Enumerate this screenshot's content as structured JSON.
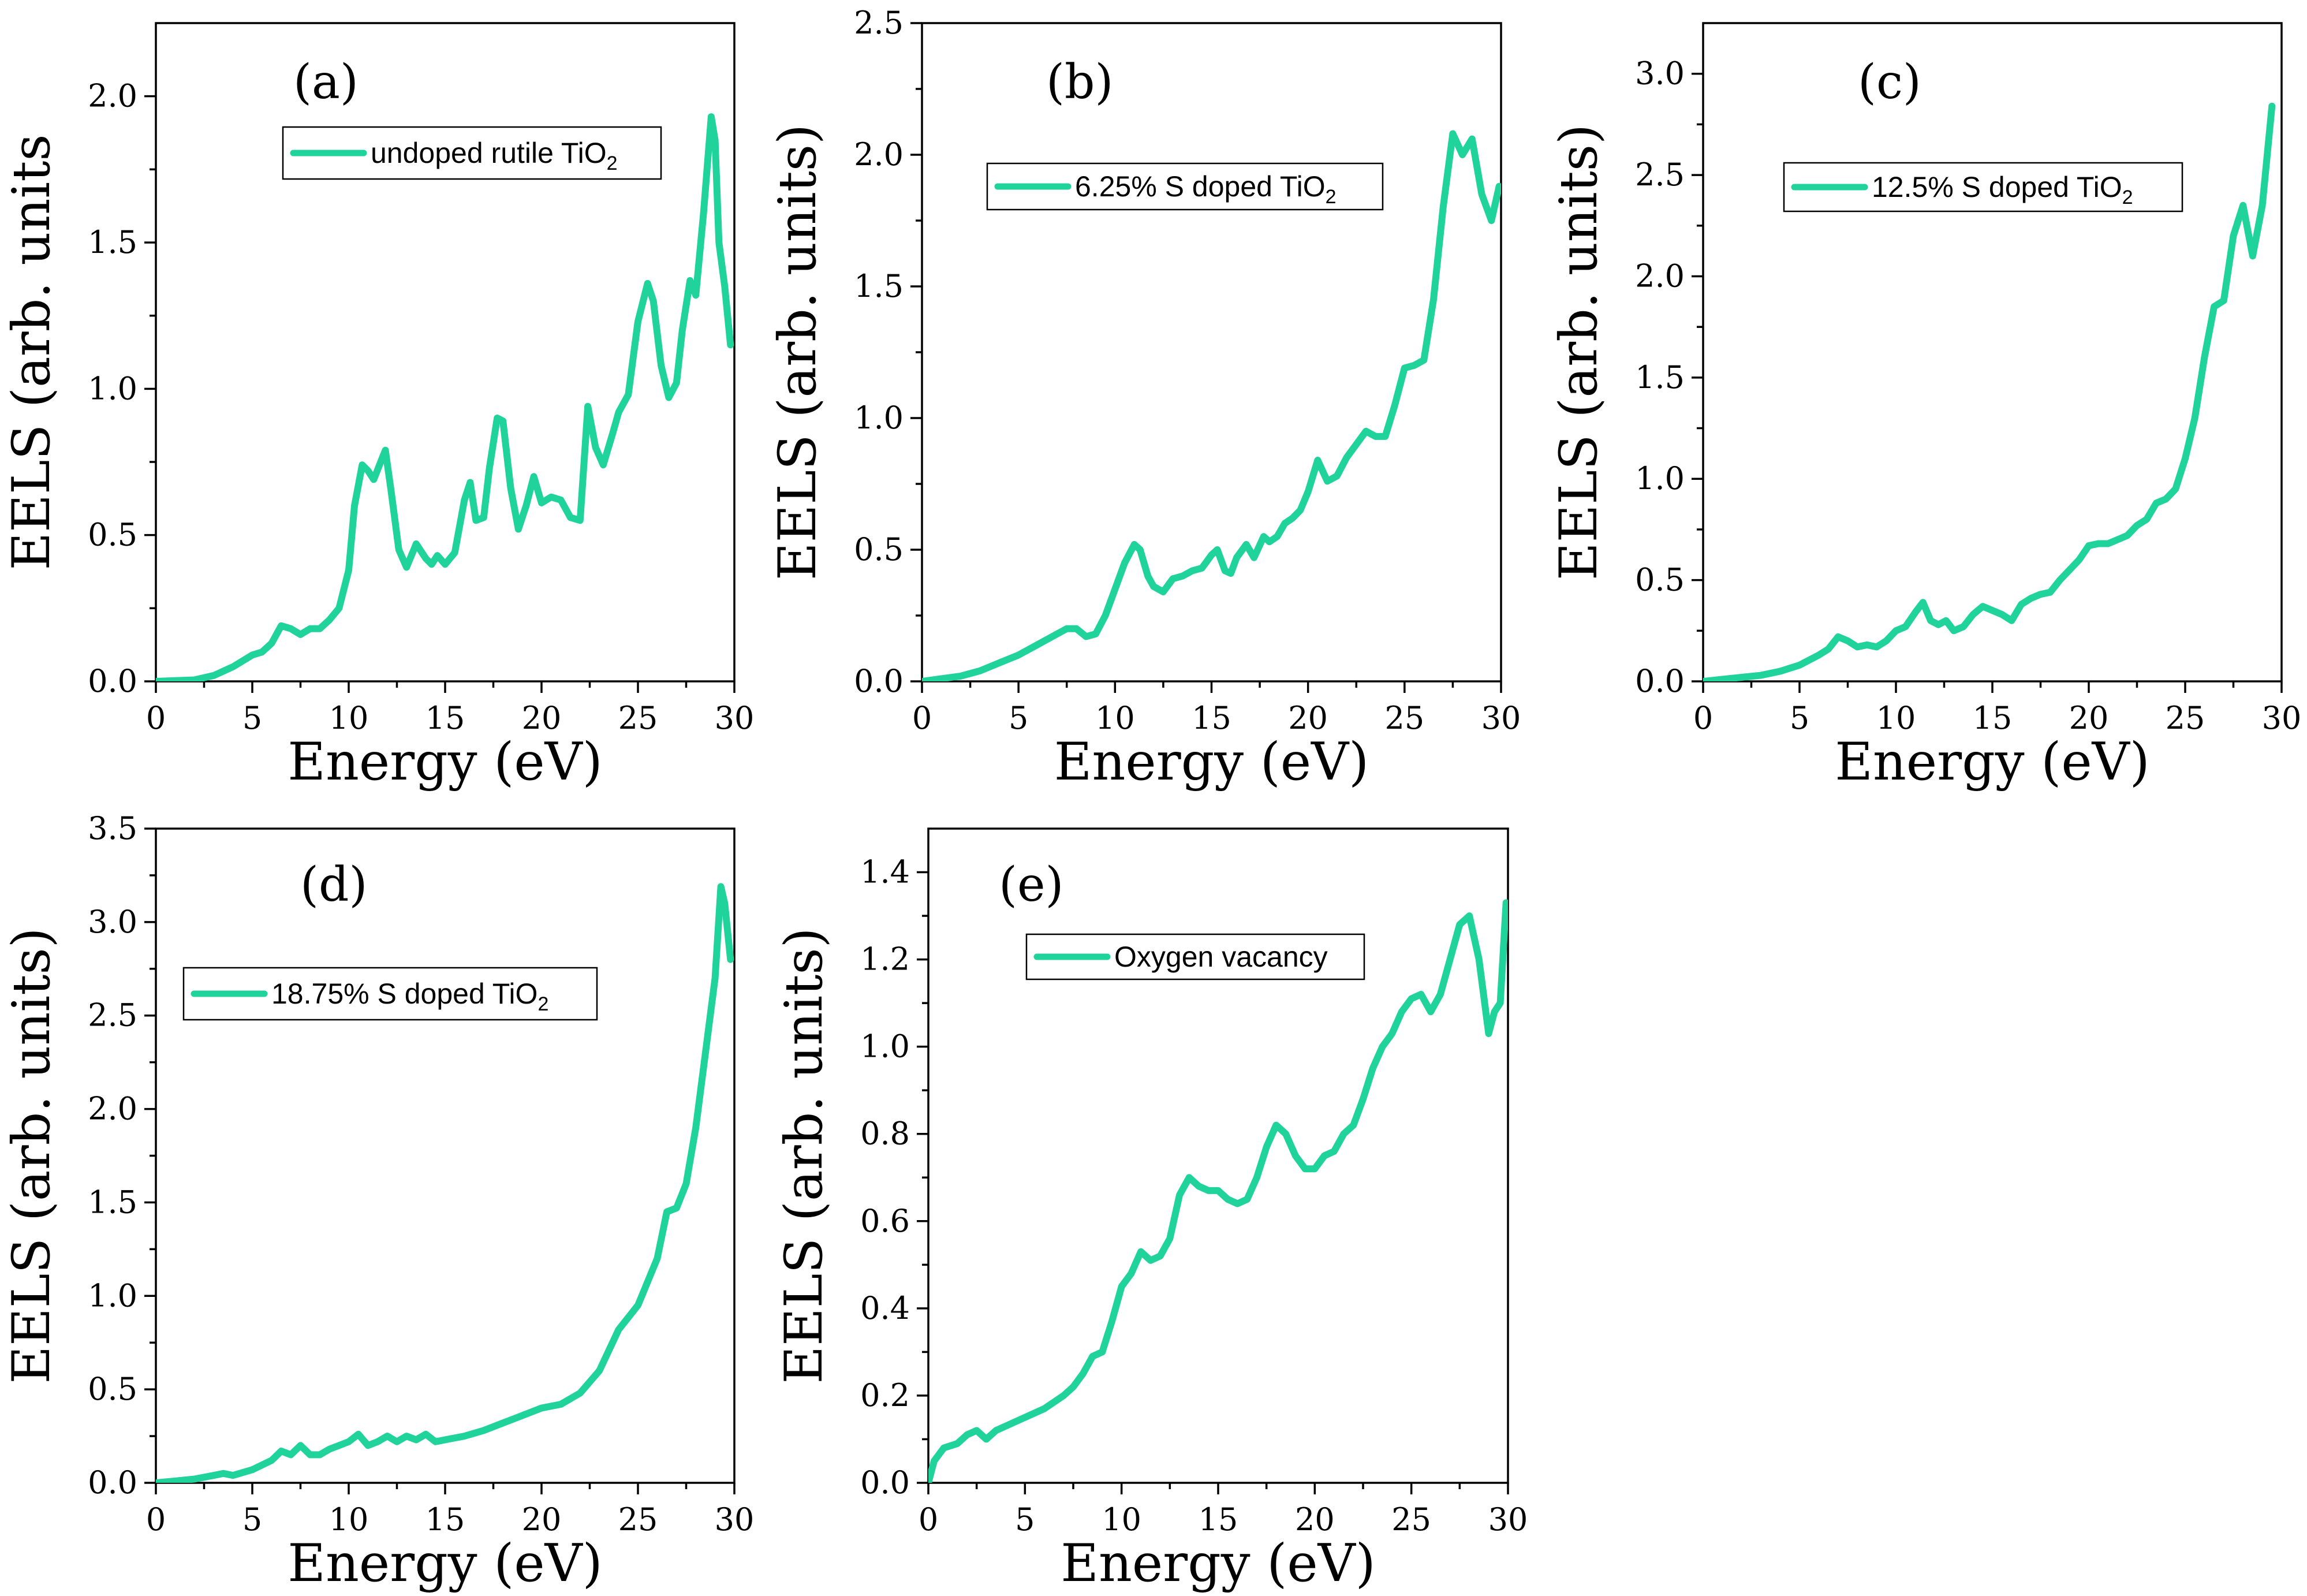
{
  "chart_data": [
    {
      "type": "line",
      "panel": "(a)",
      "xlabel": "Energy (eV)",
      "ylabel": "EELS (arb. units",
      "xlim": [
        0,
        30
      ],
      "ylim": [
        0,
        2.25
      ],
      "xticks": [
        0,
        5,
        10,
        15,
        20,
        25,
        30
      ],
      "xtick_labels": [
        "0",
        "5",
        "10",
        "15",
        "20",
        "25",
        "30"
      ],
      "yticks": [
        0,
        0.5,
        1.0,
        1.5,
        2.0
      ],
      "ytick_labels": [
        "0.0",
        "0.5",
        "1.0",
        "1.5",
        "2.0"
      ],
      "legend": {
        "text": "undoped rutile TiO",
        "sub": "2",
        "position": "top-center"
      },
      "series": [
        {
          "name": "undoped rutile TiO2",
          "color": "#1fd39a",
          "x": [
            0,
            2,
            3,
            4,
            5,
            5.5,
            6,
            6.5,
            7,
            7.5,
            8,
            8.5,
            9,
            9.5,
            10,
            10.3,
            10.7,
            11,
            11.3,
            11.6,
            11.9,
            12.2,
            12.6,
            13,
            13.5,
            14,
            14.3,
            14.6,
            15,
            15.5,
            16,
            16.3,
            16.6,
            17,
            17.3,
            17.7,
            18,
            18.4,
            18.8,
            19.2,
            19.6,
            20,
            20.5,
            21,
            21.5,
            22,
            22.4,
            22.8,
            23.2,
            23.7,
            24,
            24.5,
            25,
            25.5,
            25.8,
            26.2,
            26.6,
            27,
            27.3,
            27.7,
            28,
            28.4,
            28.8,
            29,
            29.2,
            29.5,
            29.8
          ],
          "values": [
            0.0,
            0.005,
            0.02,
            0.05,
            0.09,
            0.1,
            0.13,
            0.19,
            0.18,
            0.16,
            0.18,
            0.18,
            0.21,
            0.25,
            0.38,
            0.6,
            0.74,
            0.72,
            0.69,
            0.74,
            0.79,
            0.65,
            0.45,
            0.39,
            0.47,
            0.42,
            0.4,
            0.43,
            0.4,
            0.44,
            0.62,
            0.68,
            0.55,
            0.56,
            0.73,
            0.9,
            0.89,
            0.66,
            0.52,
            0.6,
            0.7,
            0.61,
            0.63,
            0.62,
            0.56,
            0.55,
            0.94,
            0.8,
            0.74,
            0.85,
            0.92,
            0.98,
            1.23,
            1.36,
            1.3,
            1.08,
            0.97,
            1.02,
            1.2,
            1.37,
            1.32,
            1.6,
            1.93,
            1.85,
            1.5,
            1.35,
            1.15
          ]
        }
      ]
    },
    {
      "type": "line",
      "panel": "(b)",
      "xlabel": "Energy (eV)",
      "ylabel": "EELS (arb. units)",
      "xlim": [
        0,
        30
      ],
      "ylim": [
        0,
        2.5
      ],
      "xticks": [
        0,
        5,
        10,
        15,
        20,
        25,
        30
      ],
      "xtick_labels": [
        "0",
        "5",
        "10",
        "15",
        "20",
        "25",
        "30"
      ],
      "yticks": [
        0,
        0.5,
        1.0,
        1.5,
        2.0,
        2.5
      ],
      "ytick_labels": [
        "0.0",
        "0.5",
        "1.0",
        "1.5",
        "2.0",
        "2.5"
      ],
      "legend": {
        "text": "6.25% S doped TiO",
        "sub": "2",
        "position": "top-center"
      },
      "series": [
        {
          "name": "6.25% S doped TiO2",
          "color": "#1fd39a",
          "x": [
            0,
            1,
            2,
            3,
            4,
            5,
            6,
            7,
            7.5,
            8,
            8.5,
            9,
            9.5,
            10,
            10.5,
            11,
            11.3,
            11.7,
            12,
            12.5,
            13,
            13.5,
            14,
            14.5,
            15,
            15.3,
            15.7,
            16,
            16.3,
            16.8,
            17.2,
            17.7,
            18,
            18.4,
            18.8,
            19.2,
            19.6,
            20,
            20.5,
            21,
            21.5,
            22,
            22.5,
            23,
            23.5,
            24,
            24.5,
            25,
            25.5,
            26,
            26.5,
            27,
            27.5,
            28,
            28.5,
            29,
            29.5,
            29.9
          ],
          "values": [
            0.0,
            0.01,
            0.02,
            0.04,
            0.07,
            0.1,
            0.14,
            0.18,
            0.2,
            0.2,
            0.17,
            0.18,
            0.25,
            0.35,
            0.45,
            0.52,
            0.5,
            0.4,
            0.36,
            0.34,
            0.39,
            0.4,
            0.42,
            0.43,
            0.48,
            0.5,
            0.42,
            0.41,
            0.47,
            0.52,
            0.47,
            0.55,
            0.53,
            0.55,
            0.6,
            0.62,
            0.65,
            0.72,
            0.84,
            0.76,
            0.78,
            0.85,
            0.9,
            0.95,
            0.93,
            0.93,
            1.05,
            1.19,
            1.2,
            1.22,
            1.45,
            1.8,
            2.08,
            2.0,
            2.06,
            1.85,
            1.75,
            1.88
          ]
        }
      ]
    },
    {
      "type": "line",
      "panel": "(c)",
      "xlabel": "Energy (eV)",
      "ylabel": "EELS (arb. units)",
      "xlim": [
        0,
        30
      ],
      "ylim": [
        0,
        3.25
      ],
      "xticks": [
        0,
        5,
        10,
        15,
        20,
        25,
        30
      ],
      "xtick_labels": [
        "0",
        "5",
        "10",
        "15",
        "20",
        "25",
        "30"
      ],
      "yticks": [
        0,
        0.5,
        1.0,
        1.5,
        2.0,
        2.5,
        3.0
      ],
      "ytick_labels": [
        "0.0",
        "0.5",
        "1.0",
        "1.5",
        "2.0",
        "2.5",
        "3.0"
      ],
      "legend": {
        "text": "12.5% S doped TiO",
        "sub": "2",
        "position": "top-center"
      },
      "series": [
        {
          "name": "12.5% S doped TiO2",
          "color": "#1fd39a",
          "x": [
            0,
            1,
            2,
            3,
            4,
            5,
            6,
            6.5,
            7,
            7.5,
            8,
            8.5,
            9,
            9.5,
            10,
            10.5,
            11,
            11.4,
            11.8,
            12.2,
            12.6,
            13,
            13.5,
            14,
            14.5,
            15,
            15.5,
            16,
            16.5,
            17,
            17.5,
            18,
            18.5,
            19,
            19.5,
            20,
            20.5,
            21,
            21.5,
            22,
            22.5,
            23,
            23.5,
            24,
            24.5,
            25,
            25.5,
            26,
            26.5,
            27,
            27.5,
            28,
            28.5,
            29,
            29.5
          ],
          "values": [
            0.0,
            0.01,
            0.02,
            0.03,
            0.05,
            0.08,
            0.13,
            0.16,
            0.22,
            0.2,
            0.17,
            0.18,
            0.17,
            0.2,
            0.25,
            0.27,
            0.34,
            0.39,
            0.3,
            0.28,
            0.3,
            0.25,
            0.27,
            0.33,
            0.37,
            0.35,
            0.33,
            0.3,
            0.38,
            0.41,
            0.43,
            0.44,
            0.5,
            0.55,
            0.6,
            0.67,
            0.68,
            0.68,
            0.7,
            0.72,
            0.77,
            0.8,
            0.88,
            0.9,
            0.95,
            1.1,
            1.3,
            1.6,
            1.85,
            1.88,
            2.2,
            2.35,
            2.1,
            2.35,
            2.84
          ]
        }
      ]
    },
    {
      "type": "line",
      "panel": "(d)",
      "xlabel": "Energy (eV)",
      "ylabel": "EELS (arb. units)",
      "xlim": [
        0,
        30
      ],
      "ylim": [
        0,
        3.5
      ],
      "xticks": [
        0,
        5,
        10,
        15,
        20,
        25,
        30
      ],
      "xtick_labels": [
        "0",
        "5",
        "10",
        "15",
        "20",
        "25",
        "30"
      ],
      "yticks": [
        0,
        0.5,
        1.0,
        1.5,
        2.0,
        2.5,
        3.0,
        3.5
      ],
      "ytick_labels": [
        "0.0",
        "0.5",
        "1.0",
        "1.5",
        "2.0",
        "2.5",
        "3.0",
        "3.5"
      ],
      "legend": {
        "text": "18.75% S doped TiO",
        "sub": "2",
        "position": "top-center"
      },
      "series": [
        {
          "name": "18.75% S doped TiO2",
          "color": "#1fd39a",
          "x": [
            0,
            1,
            2,
            3,
            3.5,
            4,
            5,
            6,
            6.5,
            7,
            7.5,
            8,
            8.5,
            9,
            9.5,
            10,
            10.5,
            11,
            11.5,
            12,
            12.5,
            13,
            13.5,
            14,
            14.5,
            15,
            16,
            17,
            18,
            19,
            20,
            21,
            22,
            23,
            24,
            25,
            26,
            26.5,
            27,
            27.5,
            28,
            28.5,
            29,
            29.3,
            29.5,
            29.8
          ],
          "values": [
            0.0,
            0.01,
            0.02,
            0.04,
            0.05,
            0.04,
            0.07,
            0.12,
            0.17,
            0.15,
            0.2,
            0.15,
            0.15,
            0.18,
            0.2,
            0.22,
            0.26,
            0.2,
            0.22,
            0.25,
            0.22,
            0.25,
            0.23,
            0.26,
            0.22,
            0.23,
            0.25,
            0.28,
            0.32,
            0.36,
            0.4,
            0.42,
            0.48,
            0.6,
            0.82,
            0.95,
            1.2,
            1.45,
            1.47,
            1.6,
            1.9,
            2.3,
            2.7,
            3.19,
            3.1,
            2.8
          ]
        }
      ]
    },
    {
      "type": "line",
      "panel": "(e)",
      "xlabel": "Energy (eV)",
      "ylabel": "EELS (arb. units)",
      "xlim": [
        0,
        30
      ],
      "ylim": [
        0,
        1.5
      ],
      "xticks": [
        0,
        5,
        10,
        15,
        20,
        25,
        30
      ],
      "xtick_labels": [
        "0",
        "5",
        "10",
        "15",
        "20",
        "25",
        "30"
      ],
      "yticks": [
        0,
        0.2,
        0.4,
        0.6,
        0.8,
        1.0,
        1.2,
        1.4
      ],
      "ytick_labels": [
        "0.0",
        "0.2",
        "0.4",
        "0.6",
        "0.8",
        "1.0",
        "1.2",
        "1.4"
      ],
      "legend": {
        "text": "Oxygen vacancy",
        "sub": "",
        "position": "top-center"
      },
      "series": [
        {
          "name": "Oxygen vacancy",
          "color": "#1fd39a",
          "x": [
            0,
            0.3,
            0.8,
            1.5,
            2,
            2.5,
            3,
            3.5,
            4,
            5,
            6,
            7,
            7.5,
            8,
            8.5,
            9,
            9.5,
            10,
            10.5,
            11,
            11.5,
            12,
            12.5,
            13,
            13.5,
            14,
            14.5,
            15,
            15.5,
            16,
            16.5,
            17,
            17.5,
            18,
            18.5,
            19,
            19.5,
            20,
            20.5,
            21,
            21.5,
            22,
            22.5,
            23,
            23.5,
            24,
            24.5,
            25,
            25.5,
            26,
            26.5,
            27,
            27.5,
            28,
            28.5,
            29,
            29.3,
            29.6,
            29.9
          ],
          "values": [
            0.0,
            0.05,
            0.08,
            0.09,
            0.11,
            0.12,
            0.1,
            0.12,
            0.13,
            0.15,
            0.17,
            0.2,
            0.22,
            0.25,
            0.29,
            0.3,
            0.37,
            0.45,
            0.48,
            0.53,
            0.51,
            0.52,
            0.56,
            0.66,
            0.7,
            0.68,
            0.67,
            0.67,
            0.65,
            0.64,
            0.65,
            0.7,
            0.77,
            0.82,
            0.8,
            0.75,
            0.72,
            0.72,
            0.75,
            0.76,
            0.8,
            0.82,
            0.88,
            0.95,
            1.0,
            1.03,
            1.08,
            1.11,
            1.12,
            1.08,
            1.12,
            1.2,
            1.28,
            1.3,
            1.2,
            1.03,
            1.08,
            1.1,
            1.33
          ]
        }
      ]
    }
  ]
}
